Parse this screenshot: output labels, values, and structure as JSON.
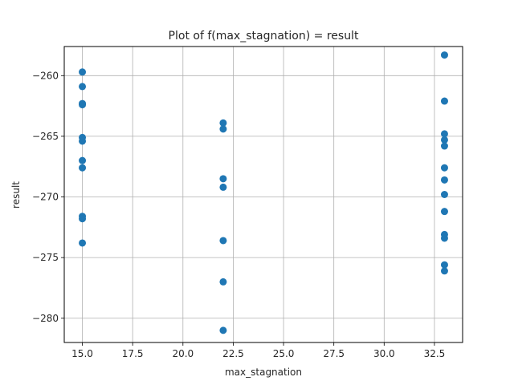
{
  "chart_data": {
    "type": "scatter",
    "title": "Plot of f(max_stagnation) = result",
    "xlabel": "max_stagnation",
    "ylabel": "result",
    "xlim": [
      14.1,
      33.9
    ],
    "ylim": [
      -282.0,
      -257.6
    ],
    "xticks": [
      15.0,
      17.5,
      20.0,
      22.5,
      25.0,
      27.5,
      30.0,
      32.5
    ],
    "xtick_labels": [
      "15.0",
      "17.5",
      "20.0",
      "22.5",
      "25.0",
      "27.5",
      "30.0",
      "32.5"
    ],
    "yticks": [
      -260,
      -265,
      -270,
      -275,
      -280
    ],
    "ytick_labels": [
      "−260",
      "−265",
      "−270",
      "−275",
      "−280"
    ],
    "grid": true,
    "marker_color": "#1f77b4",
    "points": [
      {
        "x": 15,
        "y": -259.7
      },
      {
        "x": 15,
        "y": -260.9
      },
      {
        "x": 15,
        "y": -262.3
      },
      {
        "x": 15,
        "y": -262.4
      },
      {
        "x": 15,
        "y": -265.1
      },
      {
        "x": 15,
        "y": -265.4
      },
      {
        "x": 15,
        "y": -267.0
      },
      {
        "x": 15,
        "y": -267.6
      },
      {
        "x": 15,
        "y": -271.6
      },
      {
        "x": 15,
        "y": -271.8
      },
      {
        "x": 15,
        "y": -273.8
      },
      {
        "x": 22,
        "y": -263.9
      },
      {
        "x": 22,
        "y": -264.4
      },
      {
        "x": 22,
        "y": -268.5
      },
      {
        "x": 22,
        "y": -269.2
      },
      {
        "x": 22,
        "y": -273.6
      },
      {
        "x": 22,
        "y": -277.0
      },
      {
        "x": 22,
        "y": -281.0
      },
      {
        "x": 33,
        "y": -258.3
      },
      {
        "x": 33,
        "y": -262.1
      },
      {
        "x": 33,
        "y": -264.8
      },
      {
        "x": 33,
        "y": -265.3
      },
      {
        "x": 33,
        "y": -265.8
      },
      {
        "x": 33,
        "y": -267.6
      },
      {
        "x": 33,
        "y": -268.6
      },
      {
        "x": 33,
        "y": -269.8
      },
      {
        "x": 33,
        "y": -271.2
      },
      {
        "x": 33,
        "y": -273.1
      },
      {
        "x": 33,
        "y": -273.4
      },
      {
        "x": 33,
        "y": -275.6
      },
      {
        "x": 33,
        "y": -276.1
      }
    ]
  }
}
